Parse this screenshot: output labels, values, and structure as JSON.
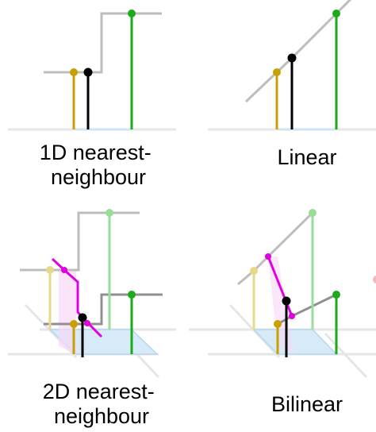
{
  "panels": [
    {
      "id": "nearest-1d",
      "caption_lines": [
        "1D nearest-",
        "neighbour"
      ]
    },
    {
      "id": "linear",
      "caption_lines": [
        "Linear"
      ]
    },
    {
      "id": "nearest-2d",
      "caption_lines": [
        "2D nearest-",
        "neighbour"
      ]
    },
    {
      "id": "bilinear",
      "caption_lines": [
        "Bilinear"
      ]
    }
  ],
  "colors": {
    "sample_left": "#c8a000",
    "sample_right": "#1aaa1a",
    "interpolated": "#000000",
    "intermediate": "#e000e0",
    "interpolant": "#b8b8b8",
    "baseline": "#e6e6e6",
    "domain_fill": "#d6eaf8"
  }
}
